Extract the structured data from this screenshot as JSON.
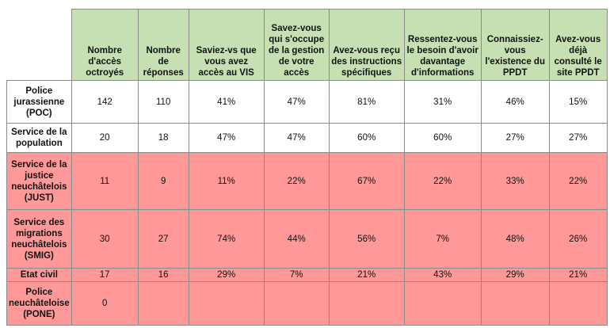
{
  "colors": {
    "header": "#c6e0b4",
    "highlight": "#ff9999"
  },
  "headers": [
    "Nombre d'accès octroyés",
    "Nombre de réponses",
    "Saviez-vs que vous avez accès au VIS",
    "Savez-vous qui s'occupe de la gestion de votre accès",
    "Avez-vous reçu des instructions spécifiques",
    "Ressentez-vous le besoin d'avoir davantage d'informations",
    "Connaissiez-vous l'existence du PPDT",
    "Avez-vous déjà consulté le site PPDT"
  ],
  "rows": [
    {
      "name": "Police jurassienne (POC)",
      "highlight": false,
      "values": [
        "142",
        "110",
        "41%",
        "47%",
        "81%",
        "31%",
        "46%",
        "15%"
      ]
    },
    {
      "name": "Service de la population",
      "highlight": false,
      "values": [
        "20",
        "18",
        "47%",
        "47%",
        "60%",
        "60%",
        "27%",
        "27%"
      ]
    },
    {
      "name": "Service de la justice neuchâtelois (JUST)",
      "highlight": true,
      "values": [
        "11",
        "9",
        "11%",
        "22%",
        "67%",
        "22%",
        "33%",
        "22%"
      ]
    },
    {
      "name": "Service des migrations neuchâtelois (SMIG)",
      "highlight": true,
      "values": [
        "30",
        "27",
        "74%",
        "44%",
        "56%",
        "7%",
        "48%",
        "26%"
      ]
    },
    {
      "name": "Etat civil",
      "highlight": true,
      "values": [
        "17",
        "16",
        "29%",
        "7%",
        "21%",
        "43%",
        "29%",
        "21%"
      ]
    },
    {
      "name": "Police neuchâteloise (PONE)",
      "highlight": true,
      "values": [
        "0",
        "",
        "",
        "",
        "",
        "",
        "",
        ""
      ]
    }
  ]
}
